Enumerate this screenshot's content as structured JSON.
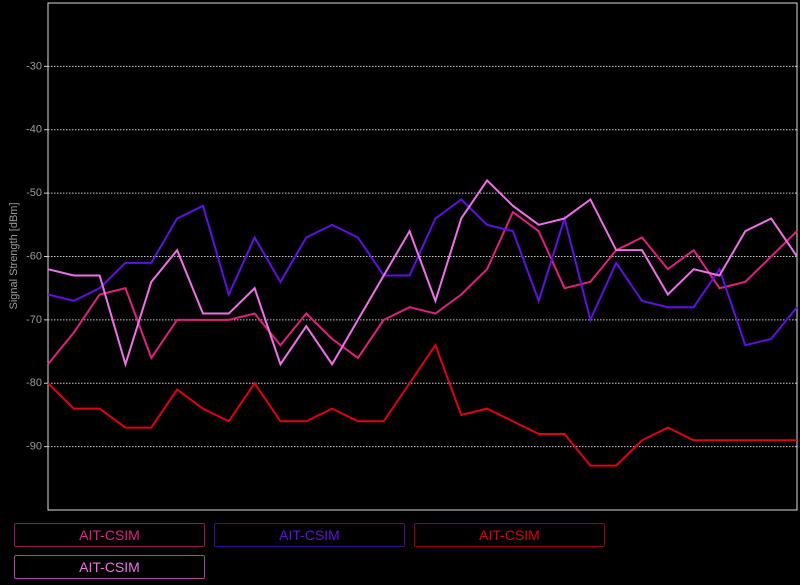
{
  "chart_data": {
    "type": "line",
    "y_label": "Signal Strength [dBm]",
    "ylim": [
      -100,
      -20
    ],
    "yticks": [
      -30,
      -40,
      -50,
      -60,
      -70,
      -80,
      -90
    ],
    "grid": true,
    "series": [
      {
        "name": "AIT-CSIM",
        "color": "#e0207f",
        "values": [
          -77,
          -72,
          -66,
          -65,
          -76,
          -70,
          -70,
          -70,
          -69,
          -74,
          -69,
          -73,
          -76,
          -70,
          -68,
          -69,
          -66,
          -62,
          -53,
          -56,
          -65,
          -64,
          -59,
          -57,
          -62,
          -59,
          -65,
          -64,
          -60,
          -56
        ]
      },
      {
        "name": "AIT-CSIM",
        "color": "#6010e0",
        "values": [
          -66,
          -67,
          -65,
          -61,
          -61,
          -54,
          -52,
          -66,
          -57,
          -64,
          -57,
          -55,
          -57,
          -63,
          -63,
          -54,
          -51,
          -55,
          -56,
          -67,
          -54,
          -70,
          -61,
          -67,
          -68,
          -68,
          -62,
          -74,
          -73,
          -68
        ]
      },
      {
        "name": "AIT-CSIM",
        "color": "#e00010",
        "values": [
          -80,
          -84,
          -84,
          -87,
          -87,
          -81,
          -84,
          -86,
          -80,
          -86,
          -86,
          -84,
          -86,
          -86,
          -80,
          -74,
          -85,
          -84,
          -86,
          -88,
          -88,
          -93,
          -93,
          -89,
          -87,
          -89,
          -89,
          -89,
          -89,
          -89
        ]
      },
      {
        "name": "AIT-CSIM",
        "color": "#f070e8",
        "values": [
          -62,
          -63,
          -63,
          -77,
          -64,
          -59,
          -69,
          -69,
          -65,
          -77,
          -71,
          -77,
          -70,
          -63,
          -56,
          -67,
          -54,
          -48,
          -52,
          -55,
          -54,
          -51,
          -59,
          -59,
          -66,
          -62,
          -63,
          -56,
          -54,
          -60
        ]
      }
    ]
  }
}
